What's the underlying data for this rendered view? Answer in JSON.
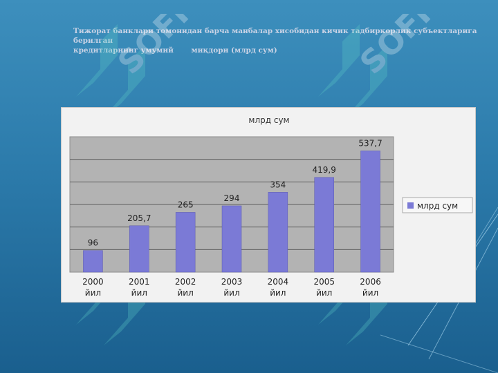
{
  "slide": {
    "title_line1": "Тижорат банклари томонидан барча манбалар хисобидан кичик тадбиркорлик  субъектларига берилган",
    "title_line2": "кредитларнинг умумий       миқдори (млрд сум)",
    "watermark_text": "SOFF"
  },
  "colors": {
    "bar": "#7b7ad6",
    "plot_bg": "#b3b3b3",
    "chart_bg": "#f2f2f2",
    "title_text": "#c9d3e6"
  },
  "chart_data": {
    "type": "bar",
    "title": "млрд сум",
    "categories": [
      [
        "2000",
        "йил"
      ],
      [
        "2001",
        "йил"
      ],
      [
        "2002",
        "йил"
      ],
      [
        "2003",
        "йил"
      ],
      [
        "2004",
        "йил"
      ],
      [
        "2005",
        "йил"
      ],
      [
        "2006",
        "йил"
      ]
    ],
    "series": [
      {
        "name": "млрд сум",
        "values": [
          96,
          205.7,
          265,
          294,
          354,
          419.9,
          537.7
        ],
        "labels": [
          "96",
          "205,7",
          "265",
          "294",
          "354",
          "419,9",
          "537,7"
        ]
      }
    ],
    "ylim": [
      0,
      600
    ],
    "grid": true,
    "legend": "right"
  }
}
